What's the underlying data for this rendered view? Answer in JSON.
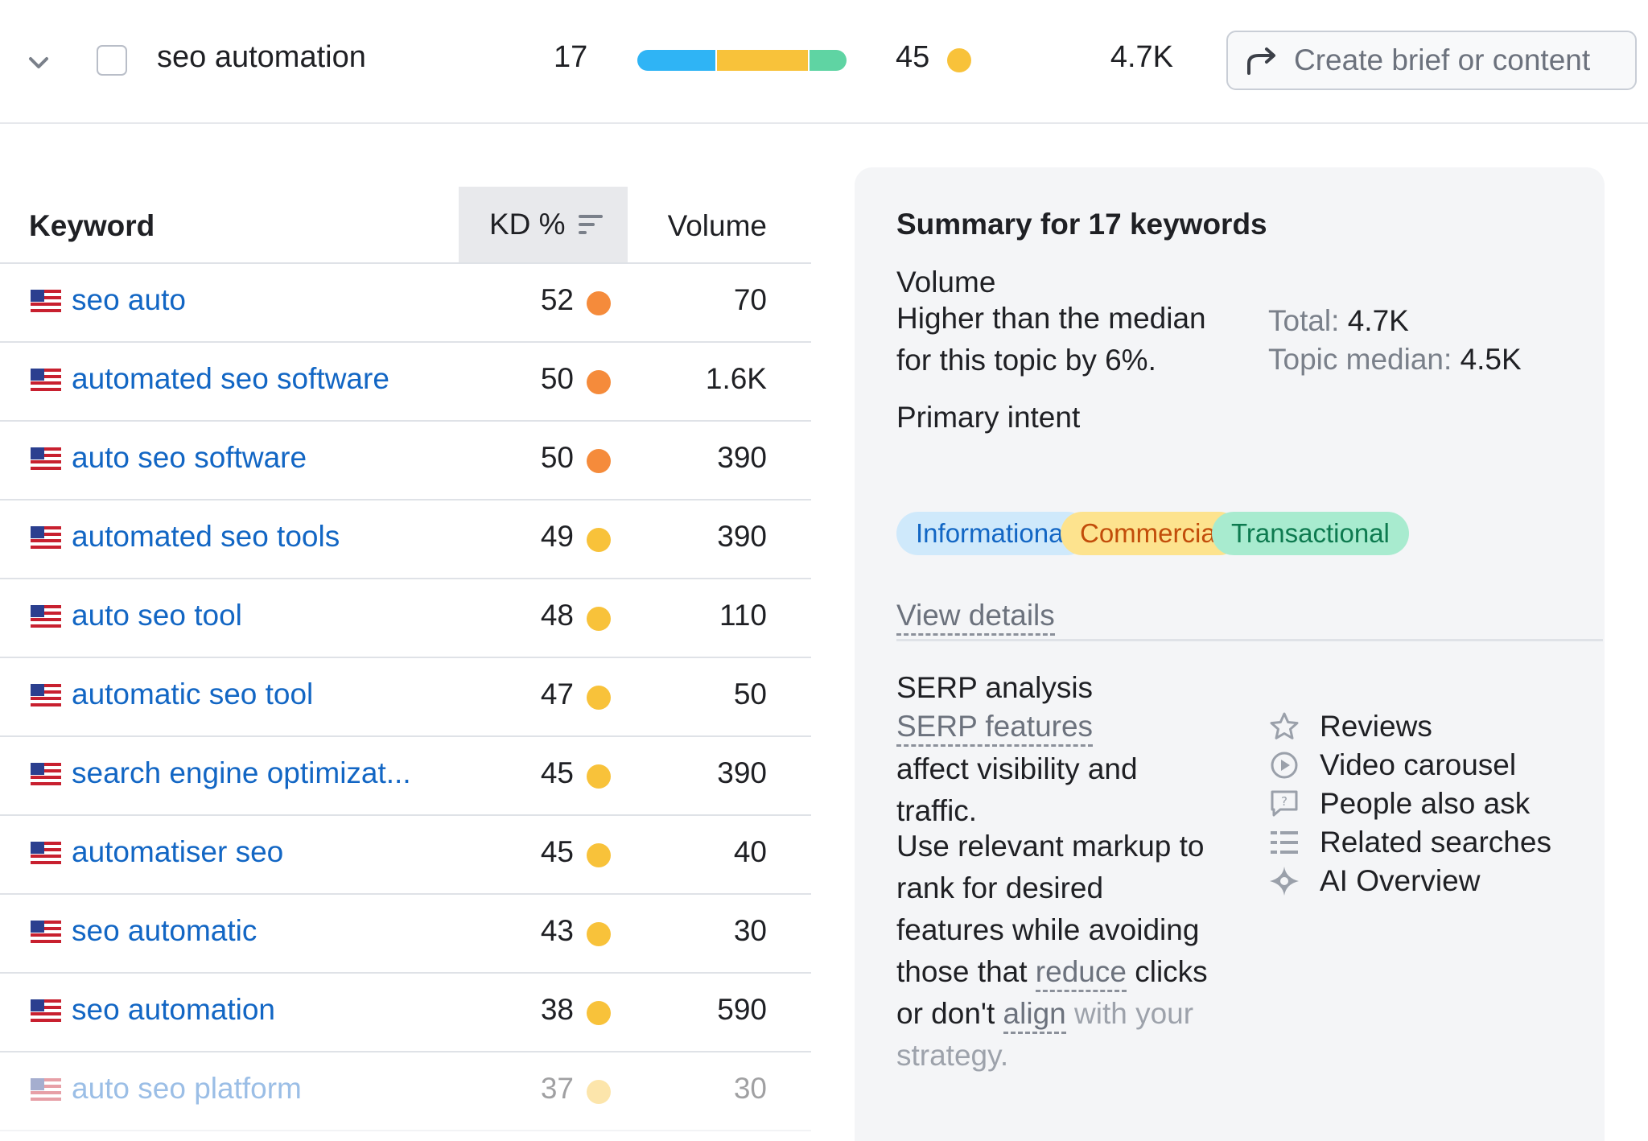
{
  "top_row": {
    "keyword": "seo automation",
    "keyword_count": "17",
    "intent_bar_colors": [
      "#2fb4f5",
      "#f8c23a",
      "#5fd4a3"
    ],
    "intent_bar_fractions": [
      0.38,
      0.44,
      0.18
    ],
    "kd": "45",
    "kd_color": "#f8c23a",
    "volume": "4.7K",
    "brief_button_label": "Create brief or content",
    "brief_icon": "share-arrow-icon",
    "expand_icon": "chevron-down-icon"
  },
  "table": {
    "headers": {
      "keyword": "Keyword",
      "kd": "KD %",
      "volume": "Volume"
    },
    "sort_icon": "sort-lines-icon",
    "rows": [
      {
        "keyword": "seo auto",
        "kd": "52",
        "kd_color": "#f58b3b",
        "volume": "70"
      },
      {
        "keyword": "automated seo software",
        "kd": "50",
        "kd_color": "#f58b3b",
        "volume": "1.6K"
      },
      {
        "keyword": "auto seo software",
        "kd": "50",
        "kd_color": "#f58b3b",
        "volume": "390"
      },
      {
        "keyword": "automated seo tools",
        "kd": "49",
        "kd_color": "#f8c23a",
        "volume": "390"
      },
      {
        "keyword": "auto seo tool",
        "kd": "48",
        "kd_color": "#f8c23a",
        "volume": "110"
      },
      {
        "keyword": "automatic seo tool",
        "kd": "47",
        "kd_color": "#f8c23a",
        "volume": "50"
      },
      {
        "keyword": "search engine optimizat...",
        "kd": "45",
        "kd_color": "#f8c23a",
        "volume": "390"
      },
      {
        "keyword": "automatiser seo",
        "kd": "45",
        "kd_color": "#f8c23a",
        "volume": "40"
      },
      {
        "keyword": "seo automatic",
        "kd": "43",
        "kd_color": "#f8c23a",
        "volume": "30"
      },
      {
        "keyword": "seo automation",
        "kd": "38",
        "kd_color": "#f8c23a",
        "volume": "590"
      },
      {
        "keyword": "auto seo platform",
        "kd": "37",
        "kd_color": "#f8c23a",
        "volume": "30"
      }
    ]
  },
  "summary": {
    "title": "Summary for 17 keywords",
    "volume": {
      "heading": "Volume",
      "text": "Higher than the median for this topic by 6%.",
      "total_label": "Total:",
      "total_value": "4.7K",
      "median_label": "Topic median:",
      "median_value": "4.5K"
    },
    "intent": {
      "heading": "Primary intent",
      "pills": [
        {
          "label": "Informational",
          "bg": "#cfe9fb",
          "fg": "#1266c4"
        },
        {
          "label": "Commercial",
          "bg": "#fde38e",
          "fg": "#c24d0a"
        },
        {
          "label": "Transactional",
          "bg": "#a8ebcf",
          "fg": "#0d7a4f"
        }
      ],
      "view_details": "View details"
    },
    "serp": {
      "heading": "SERP analysis",
      "features_link": "SERP features",
      "text1": "affect visibility and traffic.",
      "text2_a": "Use relevant markup to rank for desired features while avoiding those that",
      "reduce": "reduce",
      "text2_b": "clicks or don't",
      "align": "align",
      "text2_c": "with your strategy.",
      "features": [
        {
          "label": "Reviews",
          "icon": "star-icon"
        },
        {
          "label": "Video carousel",
          "icon": "play-circle-icon"
        },
        {
          "label": "People also ask",
          "icon": "question-bubble-icon"
        },
        {
          "label": "Related searches",
          "icon": "list-icon"
        },
        {
          "label": "AI Overview",
          "icon": "ai-sparkle-icon"
        }
      ]
    }
  }
}
